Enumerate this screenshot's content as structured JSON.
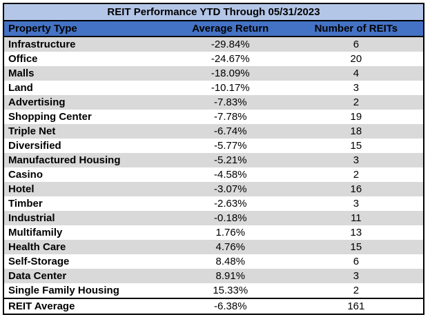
{
  "title": "REIT Performance YTD Through 05/31/2023",
  "colors": {
    "title_bg": "#B4C6E7",
    "header_bg": "#4472C4",
    "stripe_row_bg": "#D9D9D9",
    "plain_row_bg": "#FFFFFF",
    "border": "#000000",
    "text": "#000000"
  },
  "chart_data": {
    "type": "table",
    "title": "REIT Performance YTD Through 05/31/2023",
    "columns": [
      "Property Type",
      "Average Return",
      "Number of REITs"
    ],
    "rows": [
      [
        "Infrastructure",
        "-29.84%",
        "6"
      ],
      [
        "Office",
        "-24.67%",
        "20"
      ],
      [
        "Malls",
        "-18.09%",
        "4"
      ],
      [
        "Land",
        "-10.17%",
        "3"
      ],
      [
        "Advertising",
        "-7.83%",
        "2"
      ],
      [
        "Shopping Center",
        "-7.78%",
        "19"
      ],
      [
        "Triple Net",
        "-6.74%",
        "18"
      ],
      [
        "Diversified",
        "-5.77%",
        "15"
      ],
      [
        "Manufactured Housing",
        "-5.21%",
        "3"
      ],
      [
        "Casino",
        "-4.58%",
        "2"
      ],
      [
        "Hotel",
        "-3.07%",
        "16"
      ],
      [
        "Timber",
        "-2.63%",
        "3"
      ],
      [
        "Industrial",
        "-0.18%",
        "11"
      ],
      [
        "Multifamily",
        "1.76%",
        "13"
      ],
      [
        "Health Care",
        "4.76%",
        "15"
      ],
      [
        "Self-Storage",
        "8.48%",
        "6"
      ],
      [
        "Data Center",
        "8.91%",
        "3"
      ],
      [
        "Single Family Housing",
        "15.33%",
        "2"
      ]
    ],
    "summary_row": [
      "REIT Average",
      "-6.38%",
      "161"
    ],
    "layout_hints": {
      "striped": true,
      "first_data_row_striped": true,
      "column_alignment": [
        "left",
        "center",
        "center"
      ]
    }
  }
}
